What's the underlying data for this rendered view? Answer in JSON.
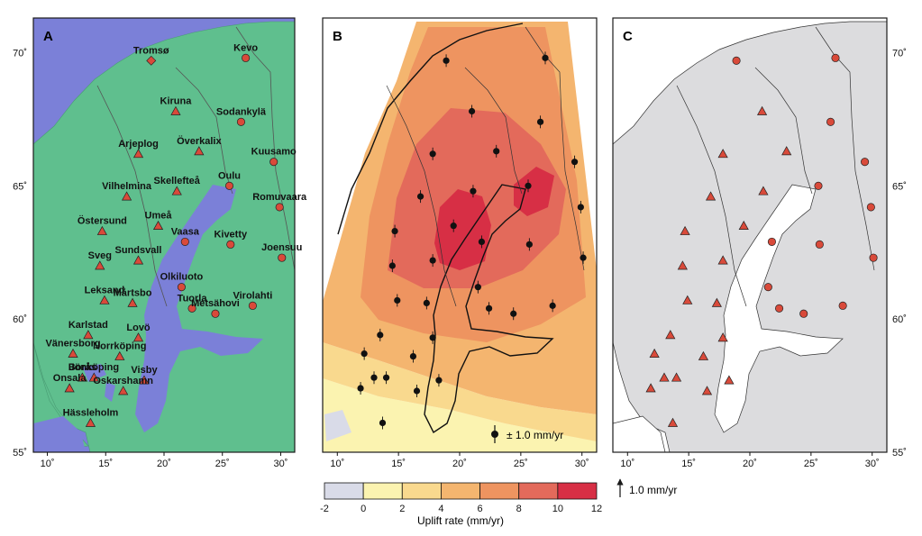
{
  "figure": {
    "panels": [
      {
        "letter": "A"
      },
      {
        "letter": "B"
      },
      {
        "letter": "C"
      }
    ],
    "x_axis": {
      "ticks": [
        {
          "value": 10,
          "label": "10˚"
        },
        {
          "value": 15,
          "label": "15˚"
        },
        {
          "value": 20,
          "label": "20˚"
        },
        {
          "value": 25,
          "label": "25˚"
        },
        {
          "value": 30,
          "label": "30˚"
        }
      ]
    },
    "y_axis": {
      "ticks": [
        {
          "value": 55,
          "label": "55˚"
        },
        {
          "value": 60,
          "label": "60˚"
        },
        {
          "value": 65,
          "label": "65˚"
        },
        {
          "value": 70,
          "label": "70˚"
        }
      ]
    },
    "colors": {
      "sea": "#7b80d8",
      "land": "#5fbf8e",
      "site_fill": "#d94a3a",
      "land_gray": "#dcdcde",
      "outline": "#1a1a1a"
    },
    "stations": [
      {
        "name": "Tromsø",
        "lon": 18.9,
        "lat": 69.7,
        "kind": "diamond"
      },
      {
        "name": "Kevo",
        "lon": 27.0,
        "lat": 69.8,
        "kind": "circle"
      },
      {
        "name": "Kiruna",
        "lon": 21.0,
        "lat": 67.8,
        "kind": "triangle"
      },
      {
        "name": "Sodankylä",
        "lon": 26.6,
        "lat": 67.4,
        "kind": "circle"
      },
      {
        "name": "Arjeplog",
        "lon": 17.8,
        "lat": 66.2,
        "kind": "triangle"
      },
      {
        "name": "Överkalix",
        "lon": 23.0,
        "lat": 66.3,
        "kind": "triangle"
      },
      {
        "name": "Kuusamo",
        "lon": 29.4,
        "lat": 65.9,
        "kind": "circle"
      },
      {
        "name": "Oulu",
        "lon": 25.6,
        "lat": 65.0,
        "kind": "circle"
      },
      {
        "name": "Skellefteå",
        "lon": 21.1,
        "lat": 64.8,
        "kind": "triangle"
      },
      {
        "name": "Vilhelmina",
        "lon": 16.8,
        "lat": 64.6,
        "kind": "triangle"
      },
      {
        "name": "Romuvaara",
        "lon": 29.9,
        "lat": 64.2,
        "kind": "circle"
      },
      {
        "name": "Östersund",
        "lon": 14.7,
        "lat": 63.3,
        "kind": "triangle"
      },
      {
        "name": "Umeå",
        "lon": 19.5,
        "lat": 63.5,
        "kind": "triangle"
      },
      {
        "name": "Vaasa",
        "lon": 21.8,
        "lat": 62.9,
        "kind": "circle"
      },
      {
        "name": "Kivetty",
        "lon": 25.7,
        "lat": 62.8,
        "kind": "circle"
      },
      {
        "name": "Joensuu",
        "lon": 30.1,
        "lat": 62.3,
        "kind": "circle"
      },
      {
        "name": "Sveg",
        "lon": 14.5,
        "lat": 62.0,
        "kind": "triangle"
      },
      {
        "name": "Sundsvall",
        "lon": 17.8,
        "lat": 62.2,
        "kind": "triangle"
      },
      {
        "name": "Olkiluoto",
        "lon": 21.5,
        "lat": 61.2,
        "kind": "circle"
      },
      {
        "name": "Leksand",
        "lon": 14.9,
        "lat": 60.7,
        "kind": "triangle"
      },
      {
        "name": "Mårtsbo",
        "lon": 17.3,
        "lat": 60.6,
        "kind": "triangle"
      },
      {
        "name": "Tuorla",
        "lon": 22.4,
        "lat": 60.4,
        "kind": "circle"
      },
      {
        "name": "Virolahti",
        "lon": 27.6,
        "lat": 60.5,
        "kind": "circle"
      },
      {
        "name": "Metsähovi",
        "lon": 24.4,
        "lat": 60.2,
        "kind": "circle"
      },
      {
        "name": "Karlstad",
        "lon": 13.5,
        "lat": 59.4,
        "kind": "triangle"
      },
      {
        "name": "Lovö",
        "lon": 17.8,
        "lat": 59.3,
        "kind": "triangle"
      },
      {
        "name": "Vänersborg",
        "lon": 12.2,
        "lat": 58.7,
        "kind": "triangle"
      },
      {
        "name": "Norrköping",
        "lon": 16.2,
        "lat": 58.6,
        "kind": "triangle"
      },
      {
        "name": "Borås",
        "lon": 13.0,
        "lat": 57.8,
        "kind": "triangle"
      },
      {
        "name": "Jönköping",
        "lon": 14.0,
        "lat": 57.8,
        "kind": "triangle"
      },
      {
        "name": "Visby",
        "lon": 18.3,
        "lat": 57.7,
        "kind": "triangle"
      },
      {
        "name": "Onsala",
        "lon": 11.9,
        "lat": 57.4,
        "kind": "triangle"
      },
      {
        "name": "Oskarshamn",
        "lon": 16.5,
        "lat": 57.3,
        "kind": "triangle"
      },
      {
        "name": "Hässleholm",
        "lon": 13.7,
        "lat": 56.1,
        "kind": "triangle"
      }
    ],
    "uplift_colorbar": {
      "ticks": [
        "-2",
        "0",
        "2",
        "4",
        "6",
        "8",
        "10",
        "12"
      ],
      "bins": [
        {
          "from": -2,
          "to": 0,
          "color": "#d9dbe8"
        },
        {
          "from": 0,
          "to": 2,
          "color": "#fbf3b0"
        },
        {
          "from": 2,
          "to": 4,
          "color": "#f9d98e"
        },
        {
          "from": 4,
          "to": 6,
          "color": "#f4b56f"
        },
        {
          "from": 6,
          "to": 8,
          "color": "#ee9460"
        },
        {
          "from": 8,
          "to": 10,
          "color": "#e36a5b"
        },
        {
          "from": 10,
          "to": 12,
          "color": "#d72f45"
        }
      ],
      "label": "Uplift rate (mm/yr)"
    },
    "panel_b_scale": {
      "label": "± 1.0 mm/yr"
    },
    "panel_c_scale": {
      "label": "1.0 mm/yr"
    }
  }
}
